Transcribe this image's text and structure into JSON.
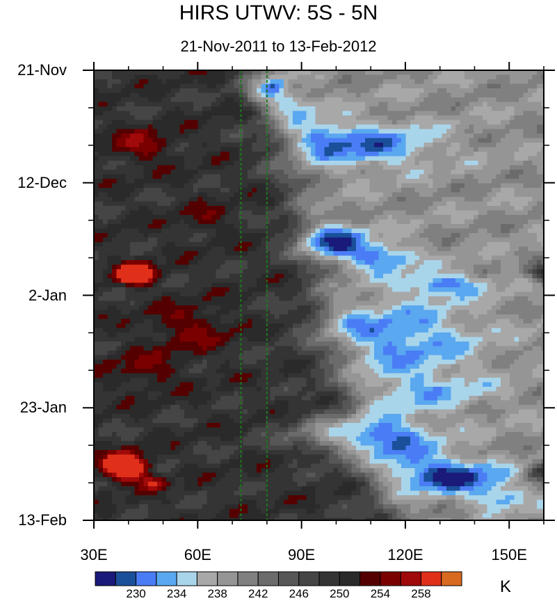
{
  "title": "HIRS UTWV: 5S - 5N",
  "subtitle": "21-Nov-2011 to 13-Feb-2012",
  "units": "K",
  "chart_data": {
    "type": "heatmap",
    "x_tick_labels": [
      "30E",
      "60E",
      "90E",
      "120E",
      "150E"
    ],
    "x_ticks": [
      30,
      60,
      90,
      120,
      150
    ],
    "xlim": [
      30,
      160
    ],
    "y_tick_labels": [
      "21-Nov",
      "12-Dec",
      "2-Jan",
      "23-Jan",
      "13-Feb"
    ],
    "y_ticks_days": [
      0,
      21,
      42,
      63,
      84
    ],
    "ylim_days": [
      0,
      84
    ],
    "reference_lines_lon": [
      72.5,
      80
    ],
    "reference_line_color": "#1a7a1a",
    "colorbar": {
      "levels": [
        228,
        230,
        232,
        234,
        236,
        238,
        240,
        242,
        244,
        246,
        248,
        250,
        252,
        254,
        256,
        258
      ],
      "labels": [
        "230",
        "234",
        "238",
        "242",
        "246",
        "250",
        "254",
        "258"
      ],
      "label_values": [
        230,
        234,
        238,
        242,
        246,
        250,
        254,
        258
      ],
      "colors": [
        "#1a1a7a",
        "#1a4f9a",
        "#4a7df5",
        "#5aa8f0",
        "#a9d5ea",
        "#a8a8a8",
        "#959595",
        "#808080",
        "#6b6b6b",
        "#575757",
        "#454545",
        "#343434",
        "#2a2a2a",
        "#550000",
        "#7a0000",
        "#a00a0a",
        "#e0301a",
        "#d86a20"
      ]
    }
  }
}
